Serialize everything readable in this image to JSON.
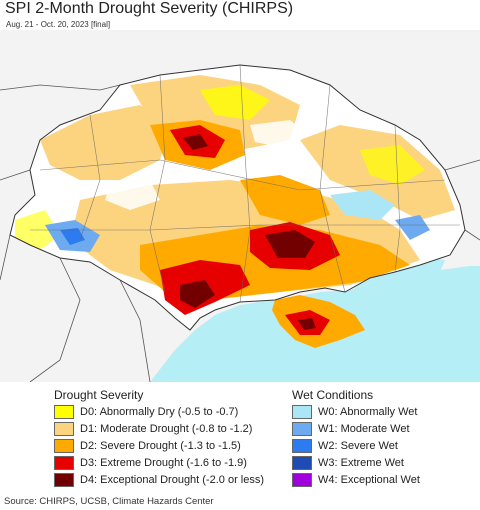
{
  "header": {
    "title": "SPI 2-Month Drought Severity (CHIRPS)",
    "subtitle": "Aug. 21 - Oct. 20, 2023 [final]"
  },
  "legend": {
    "drought_heading": "Drought Severity",
    "wet_heading": "Wet Conditions",
    "drought_items": [
      {
        "label": "D0: Abnormally Dry (-0.5 to -0.7)",
        "color": "#ffff00"
      },
      {
        "label": "D1: Moderate Drought (-0.8 to -1.2)",
        "color": "#fcd37f"
      },
      {
        "label": "D2: Severe Drought (-1.3 to -1.5)",
        "color": "#ffaa00"
      },
      {
        "label": "D3: Extreme Drought (-1.6 to -1.9)",
        "color": "#e60000"
      },
      {
        "label": "D4: Exceptional Drought (-2.0 or less)",
        "color": "#730000"
      }
    ],
    "wet_items": [
      {
        "label": "W0: Abnormally Wet",
        "color": "#aae6f5"
      },
      {
        "label": "W1: Moderate Wet",
        "color": "#6eaaf0"
      },
      {
        "label": "W2: Severe Wet",
        "color": "#2d7bf0"
      },
      {
        "label": "W3: Extreme Wet",
        "color": "#1e4bb4"
      },
      {
        "label": "W4: Exceptional Wet",
        "color": "#a000dc"
      }
    ]
  },
  "map": {
    "colors": {
      "sea": "#b5eef5",
      "outside_land": "#f3f3f3",
      "normal_land": "#ffffff",
      "border": "#555555"
    }
  },
  "footer": {
    "source": "Source: CHIRPS, UCSB, Climate Hazards Center"
  }
}
